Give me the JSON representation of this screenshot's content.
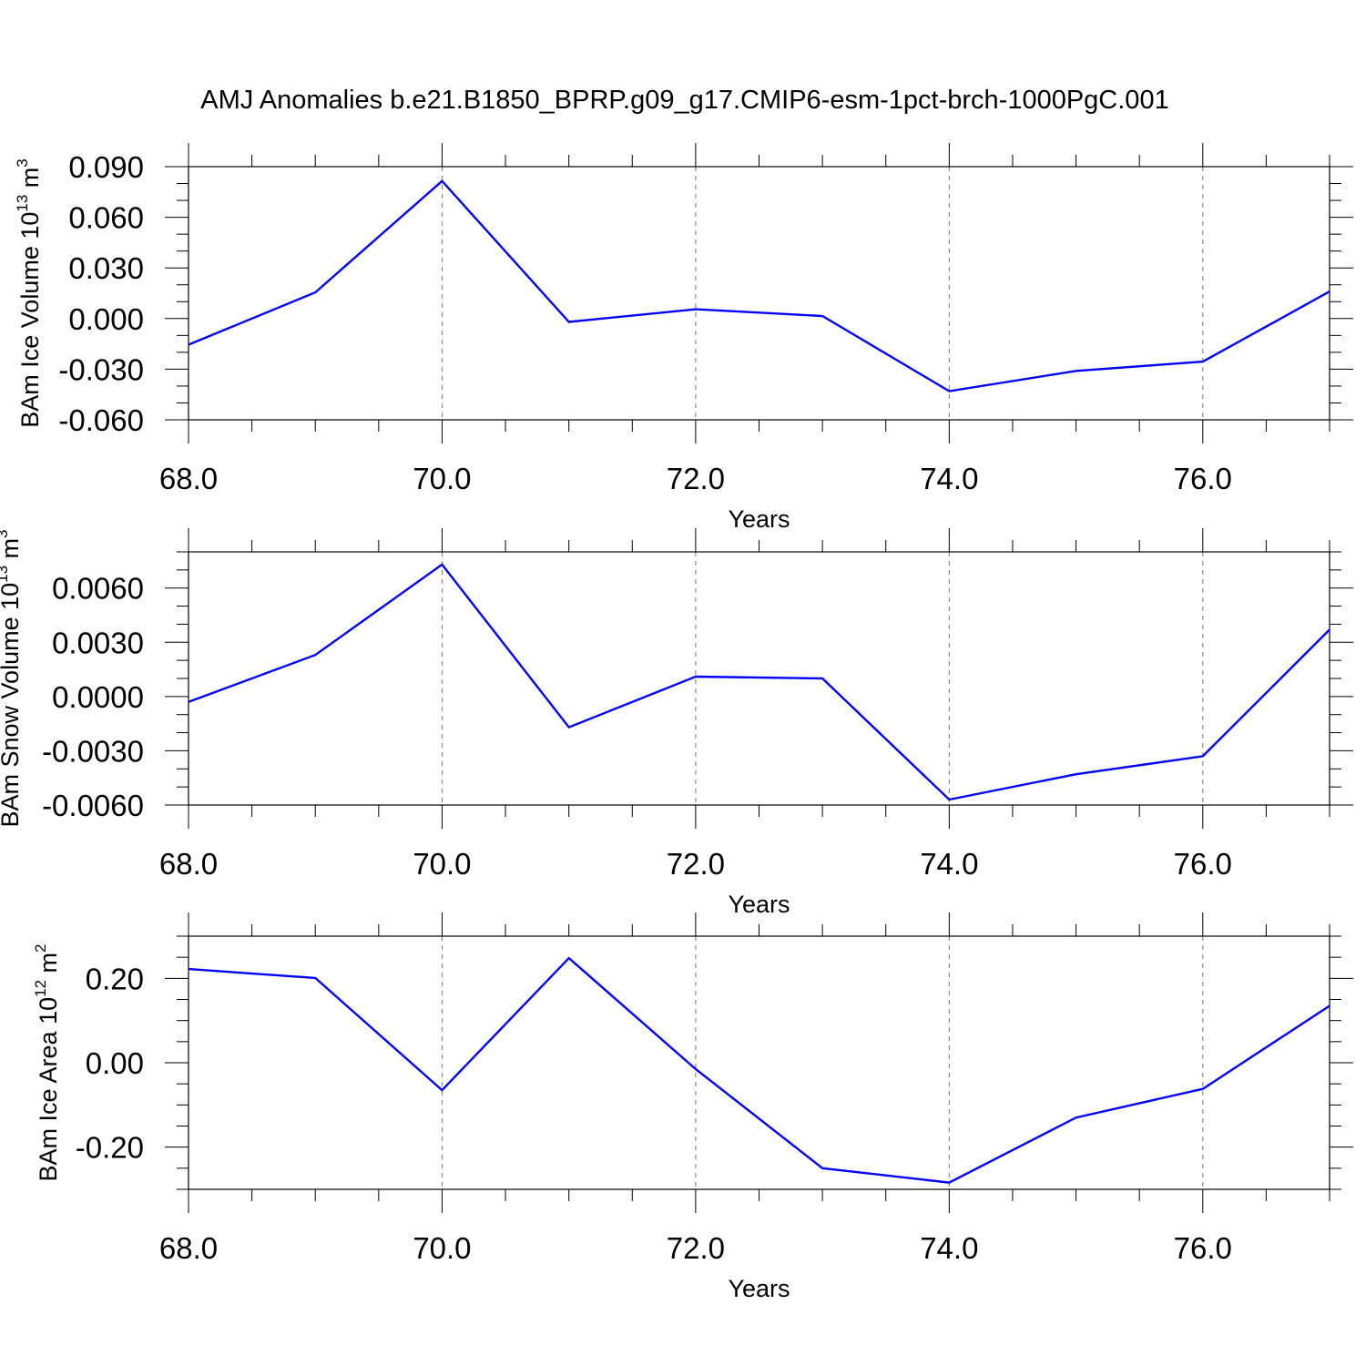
{
  "title": "AMJ Anomalies b.e21.B1850_BPRP.g09_g17.CMIP6-esm-1pct-brch-1000PgC.001",
  "colors": {
    "series": "#0000ff",
    "grid": "#777777"
  },
  "chart_data": [
    {
      "type": "line",
      "title": "",
      "xlabel": "Years",
      "ylabel": {
        "text": "BAm Ice Volume 10",
        "sup": "13",
        "unit": " m",
        "unit_sup": "3"
      },
      "x": [
        68,
        69,
        70,
        71,
        72,
        73,
        74,
        75,
        76,
        77
      ],
      "series": [
        {
          "values": [
            -0.0155,
            0.0155,
            0.0815,
            -0.002,
            0.0055,
            0.0015,
            -0.043,
            -0.031,
            -0.0255,
            0.016
          ]
        }
      ],
      "xlim": [
        68,
        77
      ],
      "ylim": [
        -0.06,
        0.09
      ],
      "xticks": [
        68,
        70,
        72,
        74,
        76
      ],
      "xtick_labels": [
        "68.0",
        "70.0",
        "72.0",
        "74.0",
        "76.0"
      ],
      "yticks": [
        -0.06,
        -0.03,
        0.0,
        0.03,
        0.06,
        0.09
      ],
      "ytick_labels": [
        "-0.060",
        "-0.030",
        "0.000",
        "0.030",
        "0.060",
        "0.090"
      ],
      "x_minor_step": 0.5,
      "y_minor_step": 0.01,
      "grid": "vertical-dashed"
    },
    {
      "type": "line",
      "title": "",
      "xlabel": "Years",
      "ylabel": {
        "text": "BAm Snow Volume 10",
        "sup": "13",
        "unit": " m",
        "unit_sup": "3"
      },
      "x": [
        68,
        69,
        70,
        71,
        72,
        73,
        74,
        75,
        76,
        77
      ],
      "series": [
        {
          "values": [
            -0.0003,
            0.0023,
            0.0073,
            -0.0017,
            0.0011,
            0.001,
            -0.0057,
            -0.0043,
            -0.0033,
            0.0037
          ]
        }
      ],
      "xlim": [
        68,
        77
      ],
      "ylim": [
        -0.006,
        0.008
      ],
      "xticks": [
        68,
        70,
        72,
        74,
        76
      ],
      "xtick_labels": [
        "68.0",
        "70.0",
        "72.0",
        "74.0",
        "76.0"
      ],
      "yticks": [
        -0.006,
        -0.003,
        0.0,
        0.003,
        0.006
      ],
      "ytick_labels": [
        "-0.0060",
        "-0.0030",
        "0.0000",
        "0.0030",
        "0.0060"
      ],
      "x_minor_step": 0.5,
      "y_minor_step": 0.001,
      "grid": "vertical-dashed"
    },
    {
      "type": "line",
      "title": "",
      "xlabel": "Years",
      "ylabel": {
        "text": "BAm Ice Area 10",
        "sup": "12",
        "unit": " m",
        "unit_sup": "2"
      },
      "x": [
        68,
        69,
        70,
        71,
        72,
        73,
        74,
        75,
        76,
        77
      ],
      "series": [
        {
          "values": [
            0.222,
            0.201,
            -0.065,
            0.248,
            -0.015,
            -0.25,
            -0.284,
            -0.13,
            -0.062,
            0.135
          ]
        }
      ],
      "xlim": [
        68,
        77
      ],
      "ylim": [
        -0.3,
        0.3
      ],
      "xticks": [
        68,
        70,
        72,
        74,
        76
      ],
      "xtick_labels": [
        "68.0",
        "70.0",
        "72.0",
        "74.0",
        "76.0"
      ],
      "yticks": [
        -0.2,
        0.0,
        0.2
      ],
      "ytick_labels": [
        "-0.20",
        "0.00",
        "0.20"
      ],
      "x_minor_step": 0.5,
      "y_minor_step": 0.05,
      "grid": "vertical-dashed"
    }
  ]
}
